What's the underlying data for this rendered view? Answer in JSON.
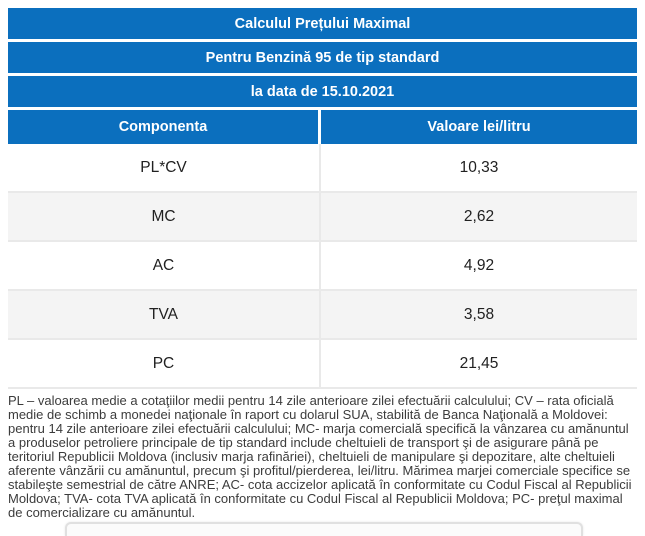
{
  "table": {
    "title_rows": [
      "Calculul Prețului Maximal",
      "Pentru Benzină 95 de tip standard",
      "la data de 15.10.2021"
    ],
    "columns": [
      "Componenta",
      "Valoare lei/litru"
    ],
    "rows": [
      {
        "componenta": "PL*CV",
        "valoare": "10,33"
      },
      {
        "componenta": "MC",
        "valoare": "2,62"
      },
      {
        "componenta": "AC",
        "valoare": "4,92"
      },
      {
        "componenta": "TVA",
        "valoare": "3,58"
      },
      {
        "componenta": "PC",
        "valoare": "21,45"
      }
    ]
  },
  "footnote": "PL – valoarea medie a cotaţiilor medii pentru 14 zile anterioare zilei efectuării calculului; CV – rata oficială medie de schimb a monedei naţionale în raport cu dolarul SUA, stabilită de Banca Naţională a Moldovei: pentru 14 zile anterioare zilei efectuării calculului; MC- marja comercială specifică la vânzarea cu amănuntul a produselor petroliere principale de tip standard include cheltuieli de transport şi de asigurare până pe teritoriul Republicii Moldova (inclusiv marja rafinăriei), cheltuieli de manipulare şi depozitare, alte cheltuieli aferente vânzării cu amănuntul, precum şi profitul/pierderea, lei/litru. Mărimea marjei comerciale specifice se stabileşte semestrial de către ANRE; AC- cota accizelor aplicată în conformitate cu Codul Fiscal al Republicii Moldova; TVA- cota TVA aplicată în conformitate cu Codul Fiscal al Republicii Moldova; PC- preţul maximal de comercializare cu amănuntul.",
  "colors": {
    "header_blue": "#0b6fbe",
    "row_alt_bg": "#f4f4f4",
    "cell_border": "#e9e9e9",
    "cell_text": "#212121",
    "footnote_text": "#3c3c3c"
  }
}
